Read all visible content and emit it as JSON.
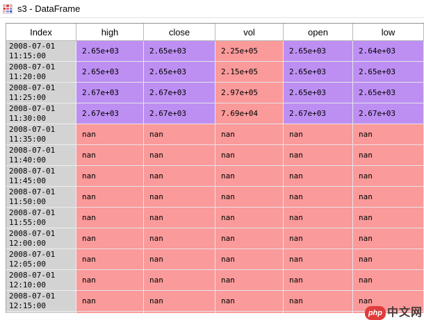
{
  "window": {
    "title": "s3 - DataFrame",
    "icon": "dataframe-grid-icon"
  },
  "table": {
    "columns": [
      "Index",
      "high",
      "close",
      "vol",
      "open",
      "low"
    ],
    "rows": [
      {
        "index": "2008-07-01\n11:15:00",
        "cells": [
          {
            "v": "2.65e+03",
            "c": "purple"
          },
          {
            "v": "2.65e+03",
            "c": "purple"
          },
          {
            "v": "2.25e+05",
            "c": "pink"
          },
          {
            "v": "2.65e+03",
            "c": "purple"
          },
          {
            "v": "2.64e+03",
            "c": "purple"
          }
        ]
      },
      {
        "index": "2008-07-01\n11:20:00",
        "cells": [
          {
            "v": "2.65e+03",
            "c": "purple"
          },
          {
            "v": "2.65e+03",
            "c": "purple"
          },
          {
            "v": "2.15e+05",
            "c": "pink"
          },
          {
            "v": "2.65e+03",
            "c": "purple"
          },
          {
            "v": "2.65e+03",
            "c": "purple"
          }
        ]
      },
      {
        "index": "2008-07-01\n11:25:00",
        "cells": [
          {
            "v": "2.67e+03",
            "c": "purple"
          },
          {
            "v": "2.67e+03",
            "c": "purple"
          },
          {
            "v": "2.97e+05",
            "c": "pink"
          },
          {
            "v": "2.65e+03",
            "c": "purple"
          },
          {
            "v": "2.65e+03",
            "c": "purple"
          }
        ]
      },
      {
        "index": "2008-07-01\n11:30:00",
        "cells": [
          {
            "v": "2.67e+03",
            "c": "purple"
          },
          {
            "v": "2.67e+03",
            "c": "purple"
          },
          {
            "v": "7.69e+04",
            "c": "pink"
          },
          {
            "v": "2.67e+03",
            "c": "purple"
          },
          {
            "v": "2.67e+03",
            "c": "purple"
          }
        ]
      },
      {
        "index": "2008-07-01\n11:35:00",
        "cells": [
          {
            "v": "nan",
            "c": "pink"
          },
          {
            "v": "nan",
            "c": "pink"
          },
          {
            "v": "nan",
            "c": "pink"
          },
          {
            "v": "nan",
            "c": "pink"
          },
          {
            "v": "nan",
            "c": "pink"
          }
        ]
      },
      {
        "index": "2008-07-01\n11:40:00",
        "cells": [
          {
            "v": "nan",
            "c": "pink"
          },
          {
            "v": "nan",
            "c": "pink"
          },
          {
            "v": "nan",
            "c": "pink"
          },
          {
            "v": "nan",
            "c": "pink"
          },
          {
            "v": "nan",
            "c": "pink"
          }
        ]
      },
      {
        "index": "2008-07-01\n11:45:00",
        "cells": [
          {
            "v": "nan",
            "c": "pink"
          },
          {
            "v": "nan",
            "c": "pink"
          },
          {
            "v": "nan",
            "c": "pink"
          },
          {
            "v": "nan",
            "c": "pink"
          },
          {
            "v": "nan",
            "c": "pink"
          }
        ]
      },
      {
        "index": "2008-07-01\n11:50:00",
        "cells": [
          {
            "v": "nan",
            "c": "pink"
          },
          {
            "v": "nan",
            "c": "pink"
          },
          {
            "v": "nan",
            "c": "pink"
          },
          {
            "v": "nan",
            "c": "pink"
          },
          {
            "v": "nan",
            "c": "pink"
          }
        ]
      },
      {
        "index": "2008-07-01\n11:55:00",
        "cells": [
          {
            "v": "nan",
            "c": "pink"
          },
          {
            "v": "nan",
            "c": "pink"
          },
          {
            "v": "nan",
            "c": "pink"
          },
          {
            "v": "nan",
            "c": "pink"
          },
          {
            "v": "nan",
            "c": "pink"
          }
        ]
      },
      {
        "index": "2008-07-01\n12:00:00",
        "cells": [
          {
            "v": "nan",
            "c": "pink"
          },
          {
            "v": "nan",
            "c": "pink"
          },
          {
            "v": "nan",
            "c": "pink"
          },
          {
            "v": "nan",
            "c": "pink"
          },
          {
            "v": "nan",
            "c": "pink"
          }
        ]
      },
      {
        "index": "2008-07-01\n12:05:00",
        "cells": [
          {
            "v": "nan",
            "c": "pink"
          },
          {
            "v": "nan",
            "c": "pink"
          },
          {
            "v": "nan",
            "c": "pink"
          },
          {
            "v": "nan",
            "c": "pink"
          },
          {
            "v": "nan",
            "c": "pink"
          }
        ]
      },
      {
        "index": "2008-07-01\n12:10:00",
        "cells": [
          {
            "v": "nan",
            "c": "pink"
          },
          {
            "v": "nan",
            "c": "pink"
          },
          {
            "v": "nan",
            "c": "pink"
          },
          {
            "v": "nan",
            "c": "pink"
          },
          {
            "v": "nan",
            "c": "pink"
          }
        ]
      },
      {
        "index": "2008-07-01\n12:15:00",
        "cells": [
          {
            "v": "nan",
            "c": "pink"
          },
          {
            "v": "nan",
            "c": "pink"
          },
          {
            "v": "nan",
            "c": "pink"
          },
          {
            "v": "nan",
            "c": "pink"
          },
          {
            "v": "nan",
            "c": "pink"
          }
        ]
      }
    ],
    "has_partial_row": true,
    "colors": {
      "low_value_cell": "#bd8ff2",
      "high_or_nan_cell": "#fa9a9a",
      "index_column_bg": "#d3d3d3"
    }
  },
  "watermark": {
    "badge": "php",
    "text": "中文网"
  }
}
